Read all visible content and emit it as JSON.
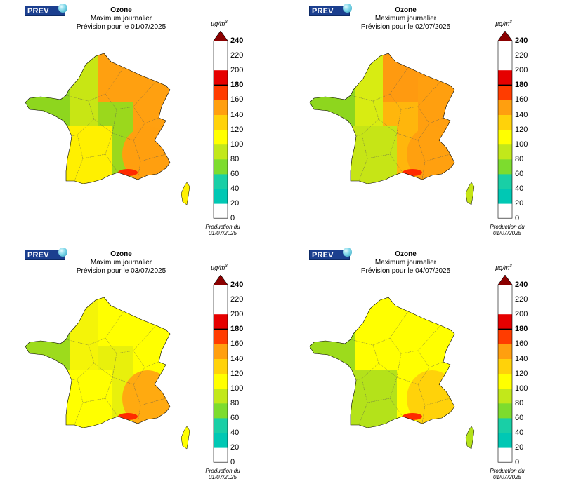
{
  "logo_text": "PREV AIR",
  "colorbar": {
    "unit_base": "µg/m",
    "unit_exp": "3",
    "ticks": [
      "240",
      "220",
      "200",
      "180",
      "160",
      "140",
      "120",
      "100",
      "80",
      "60",
      "40",
      "20",
      "0"
    ],
    "bold_ticks": [
      "240",
      "180"
    ],
    "colors": [
      "#00c8b4",
      "#19cfa6",
      "#7ddc2e",
      "#c2e81a",
      "#ffff00",
      "#ffd20a",
      "#ff9f0f",
      "#ff3c00",
      "#e60000",
      "#8b0000"
    ]
  },
  "production": [
    "Production du",
    "01/07/2025"
  ],
  "panels": [
    {
      "title": "Ozone",
      "subtitle": "Maximum journalier",
      "date_line": "Prévision pour le 01/07/2025",
      "map_colors": {
        "nw": "#8ed61e",
        "west": "#c8e614",
        "north": "#ffa010",
        "east": "#ffa010",
        "centre": "#9bd81c",
        "sw": "#fff000",
        "se": "#ff9f0f",
        "hot": "#ff2a00"
      }
    },
    {
      "title": "Ozone",
      "subtitle": "Maximum journalier",
      "date_line": "Prévision pour le 02/07/2025",
      "map_colors": {
        "nw": "#8ed61e",
        "west": "#d8ec12",
        "north": "#ff9a10",
        "east": "#ff9f0f",
        "centre": "#ffb60c",
        "sw": "#c6e516",
        "se": "#ffa00f",
        "hot": "#ff2a00"
      }
    },
    {
      "title": "Ozone",
      "subtitle": "Maximum journalier",
      "date_line": "Prévision pour le 03/07/2025",
      "map_colors": {
        "nw": "#9ddb1c",
        "west": "#f4f408",
        "north": "#ffff00",
        "east": "#ffff00",
        "centre": "#e8f00c",
        "sw": "#ffff00",
        "se": "#ffaa10",
        "hot": "#ff2a00"
      }
    },
    {
      "title": "Ozone",
      "subtitle": "Maximum journalier",
      "date_line": "Prévision pour le 04/07/2025",
      "map_colors": {
        "nw": "#9ddb1c",
        "west": "#ffff00",
        "north": "#ffff00",
        "east": "#ffff00",
        "centre": "#ffff00",
        "sw": "#b4e21a",
        "se": "#ffd20a",
        "hot": "#ff2a00"
      }
    }
  ]
}
